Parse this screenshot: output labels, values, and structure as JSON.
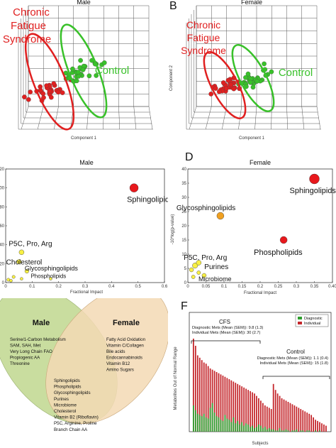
{
  "chart_data": [
    {
      "panel": "A",
      "type": "scatter",
      "title": "Male",
      "xlabel": "Component 1",
      "ylabel": "",
      "groups": [
        {
          "name": "Chronic Fatigue Syndrome",
          "color": "#e02020"
        },
        {
          "name": "Control",
          "color": "#39c12a"
        }
      ]
    },
    {
      "panel": "B",
      "type": "scatter",
      "title": "Female",
      "xlabel": "Component 1",
      "ylabel": "Component 2",
      "groups": [
        {
          "name": "Chronic Fatigue Syndrome",
          "color": "#e02020"
        },
        {
          "name": "Control",
          "color": "#39c12a"
        }
      ]
    },
    {
      "panel": "C",
      "type": "scatter",
      "title": "Male",
      "xlabel": "Fractional Impact",
      "ylabel": "",
      "xlim": [
        0,
        0.6
      ],
      "ylim": [
        0,
        120
      ],
      "xticks": [
        "0",
        "0.1",
        "0.2",
        "0.3",
        "0.4",
        "0.5",
        "0.6"
      ],
      "yticks": [
        "0",
        "20",
        "40",
        "60",
        "80",
        "100",
        "120"
      ],
      "points": [
        {
          "label": "Sphingolipids",
          "x": 0.485,
          "y": 100,
          "color": "#e8181c",
          "size": 6
        },
        {
          "label": "P5C, Pro, Arg",
          "x": 0.06,
          "y": 32,
          "color": "#f8f044",
          "size": 3.5
        },
        {
          "label": "Cholesterol",
          "x": 0.05,
          "y": 22,
          "color": "#f8f044",
          "size": 3.2
        },
        {
          "label": "Glycosphingolipids",
          "x": 0.08,
          "y": 12,
          "color": "#f8f044",
          "size": 2.8
        },
        {
          "label": "Phospholipids",
          "x": 0.17,
          "y": 4,
          "color": "#f8f044",
          "size": 2
        },
        {
          "label": "",
          "x": 0.01,
          "y": 3,
          "color": "#f8f044",
          "size": 2.2
        },
        {
          "label": "",
          "x": 0.03,
          "y": 6,
          "color": "#f8f044",
          "size": 2.2
        },
        {
          "label": "",
          "x": 0.02,
          "y": 2,
          "color": "#f8f044",
          "size": 2
        },
        {
          "label": "",
          "x": 0.06,
          "y": 4,
          "color": "#f8f044",
          "size": 2
        }
      ]
    },
    {
      "panel": "D",
      "type": "scatter",
      "title": "Female",
      "xlabel": "Fractional Impact",
      "ylabel": "-10*log(p-value)",
      "xlim": [
        0,
        0.4
      ],
      "ylim": [
        0,
        40
      ],
      "xticks": [
        "0",
        "0.05",
        "0.1",
        "0.15",
        "0.2",
        "0.25",
        "0.3",
        "0.35",
        "0.40"
      ],
      "yticks": [
        "0",
        "5",
        "10",
        "15",
        "20",
        "25",
        "30",
        "35",
        "40"
      ],
      "points": [
        {
          "label": "Sphingolipids",
          "x": 0.35,
          "y": 36.5,
          "color": "#e8181c",
          "size": 7
        },
        {
          "label": "Glycosphingolipids",
          "x": 0.09,
          "y": 23.5,
          "color": "#f0a020",
          "size": 5
        },
        {
          "label": "Phospholipids",
          "x": 0.265,
          "y": 15,
          "color": "#e8181c",
          "size": 5
        },
        {
          "label": "P5C, Pro, Arg",
          "x": 0.02,
          "y": 6,
          "color": "#f8f044",
          "size": 3.8
        },
        {
          "label": "Purines",
          "x": 0.03,
          "y": 7,
          "color": "#f8f044",
          "size": 3.5
        },
        {
          "label": "Microbiome",
          "x": 0.045,
          "y": 2.5,
          "color": "#f8f044",
          "size": 3
        },
        {
          "label": "",
          "x": 0.01,
          "y": 4.5,
          "color": "#f8f044",
          "size": 3
        },
        {
          "label": "",
          "x": 0.015,
          "y": 2,
          "color": "#f8f044",
          "size": 2.6
        },
        {
          "label": "",
          "x": 0.03,
          "y": 3.5,
          "color": "#f8f044",
          "size": 2.6
        }
      ]
    },
    {
      "panel": "E",
      "type": "diagram",
      "left_title": "Male",
      "right_title": "Female",
      "male_only": [
        "Serine/1-Carbon Metabolism",
        "SAM, SAH, Met",
        "Very Long Chain FAO",
        "Propiogenic AA",
        "Threonine"
      ],
      "female_only": [
        "Fatty Acid Oxidation",
        "Vitamin C/Collagen",
        "Bile acids",
        "Endocannabinoids",
        "Vitamin B12",
        "Amino Sugars"
      ],
      "shared": [
        "Sphingolipids",
        "Phospholipids",
        "Glycosphingolipids",
        "Purines",
        "Microbiome",
        "Cholesterol",
        "Vitamin B2 (Riboflavin)",
        "P5C, Arginine, Proline",
        "Branch Chain AA"
      ]
    },
    {
      "panel": "F",
      "type": "bar",
      "xlabel": "Subjects",
      "ylabel": "Metabolites Out of Normal Range",
      "legend": [
        {
          "name": "Diagnostic",
          "color": "#2f9e2f"
        },
        {
          "name": "Individual",
          "color": "#c4262b"
        }
      ],
      "legend_position": "top-right",
      "ylim": [
        0,
        100
      ],
      "groups": [
        {
          "label": "CFS",
          "lines": [
            "Diagnostic Mets (Mean (SEM)): 9.8 (1.3)",
            "Individual Mets (Mean (SEM)): 30 (2.7)"
          ]
        },
        {
          "label": "Control",
          "lines": [
            "Diagnostic Mets (Mean (SEM)): 1.1 (0.4)",
            "Individual Mets (Mean (SEM)): 15 (1.8)"
          ]
        }
      ],
      "individual": [
        78,
        72,
        64,
        62,
        60,
        58,
        57,
        55,
        53,
        52,
        51,
        50,
        49,
        48,
        47,
        46,
        45,
        44,
        43,
        42,
        41,
        40,
        39,
        38,
        37,
        36,
        35,
        34,
        33,
        32,
        30,
        28,
        26,
        24,
        22,
        21,
        20,
        19,
        40,
        35,
        32,
        30,
        28,
        27,
        26,
        25,
        24,
        23,
        22,
        21,
        20,
        19,
        18,
        17,
        16,
        15,
        14,
        12,
        10,
        9,
        8,
        7,
        6,
        5
      ],
      "diagnostic": [
        22,
        18,
        15,
        14,
        13,
        15,
        12,
        11,
        20,
        24,
        16,
        13,
        12,
        10,
        9,
        14,
        11,
        10,
        8,
        12,
        7,
        9,
        6,
        8,
        5,
        7,
        6,
        4,
        5,
        3,
        4,
        6,
        5,
        3,
        4,
        2,
        3,
        2,
        2,
        1,
        1,
        3,
        1,
        1,
        2,
        1,
        0,
        1,
        1,
        2,
        0,
        1,
        1,
        0,
        1,
        1,
        0,
        0,
        1,
        0,
        1,
        0,
        0,
        0
      ]
    }
  ],
  "labels": {
    "panelA": {
      "title": "Male",
      "cfs": [
        "Chronic",
        "Fatigue",
        "Syndrome"
      ],
      "control": "Control",
      "xlabel": "Component 1"
    },
    "panelB": {
      "letter": "B",
      "title": "Female",
      "cfs": [
        "Chronic",
        "Fatigue",
        "Syndrome"
      ],
      "control": "Control",
      "xlabel": "Component 1",
      "ylabel": "Component 2"
    },
    "panelC": {
      "title": "Male",
      "xlabel": "Fractional Impact"
    },
    "panelD": {
      "letter": "D",
      "title": "Female",
      "xlabel": "Fractional Impact",
      "ylabel": "-10*log(p-value)"
    },
    "panelF": {
      "letter": "F",
      "xlabel": "Subjects",
      "ylabel": "Metabolites Out of Normal Range",
      "cfs": "CFS",
      "control": "Control"
    }
  },
  "colors": {
    "cfs": "#e02020",
    "control": "#39c12a",
    "venn_green": "#c9dd9f",
    "venn_orange": "#f3d9b4"
  }
}
